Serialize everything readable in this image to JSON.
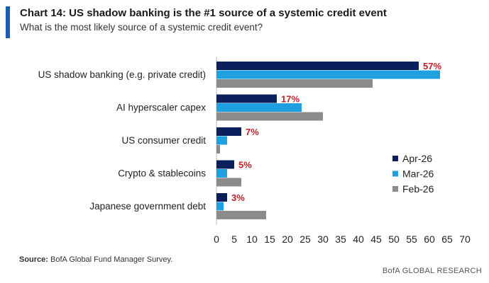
{
  "header": {
    "title": "Chart 14: US shadow banking is the #1 source of a systemic credit event",
    "subtitle": "What is the most likely source of a systemic credit event?",
    "accent_color": "#1f5bb5"
  },
  "footer": {
    "source_label": "Source:",
    "source_text": " BofA Global Fund Manager Survey.",
    "brand": "BofA GLOBAL RESEARCH"
  },
  "chart_data": {
    "type": "bar",
    "orientation": "horizontal",
    "categories": [
      "US shadow banking (e.g. private credit)",
      "AI hyperscaler capex",
      "US consumer credit",
      "Crypto & stablecoins",
      "Japanese government debt"
    ],
    "series": [
      {
        "name": "Apr-26",
        "values": [
          57,
          17,
          7,
          5,
          3
        ],
        "color": "#0b1f5c"
      },
      {
        "name": "Mar-26",
        "values": [
          63,
          24,
          3,
          3,
          2
        ],
        "color": "#1ea0e0"
      },
      {
        "name": "Feb-26",
        "values": [
          44,
          30,
          1,
          7,
          14
        ],
        "color": "#8c8a8a"
      }
    ],
    "data_labels": [
      "57%",
      "17%",
      "7%",
      "5%",
      "3%"
    ],
    "data_label_color": "#c0202a",
    "xlim": [
      0,
      70
    ],
    "x_ticks": [
      0,
      5,
      10,
      15,
      20,
      25,
      30,
      35,
      40,
      45,
      50,
      55,
      60,
      65,
      70
    ],
    "grid": false,
    "legend_position": "right"
  }
}
